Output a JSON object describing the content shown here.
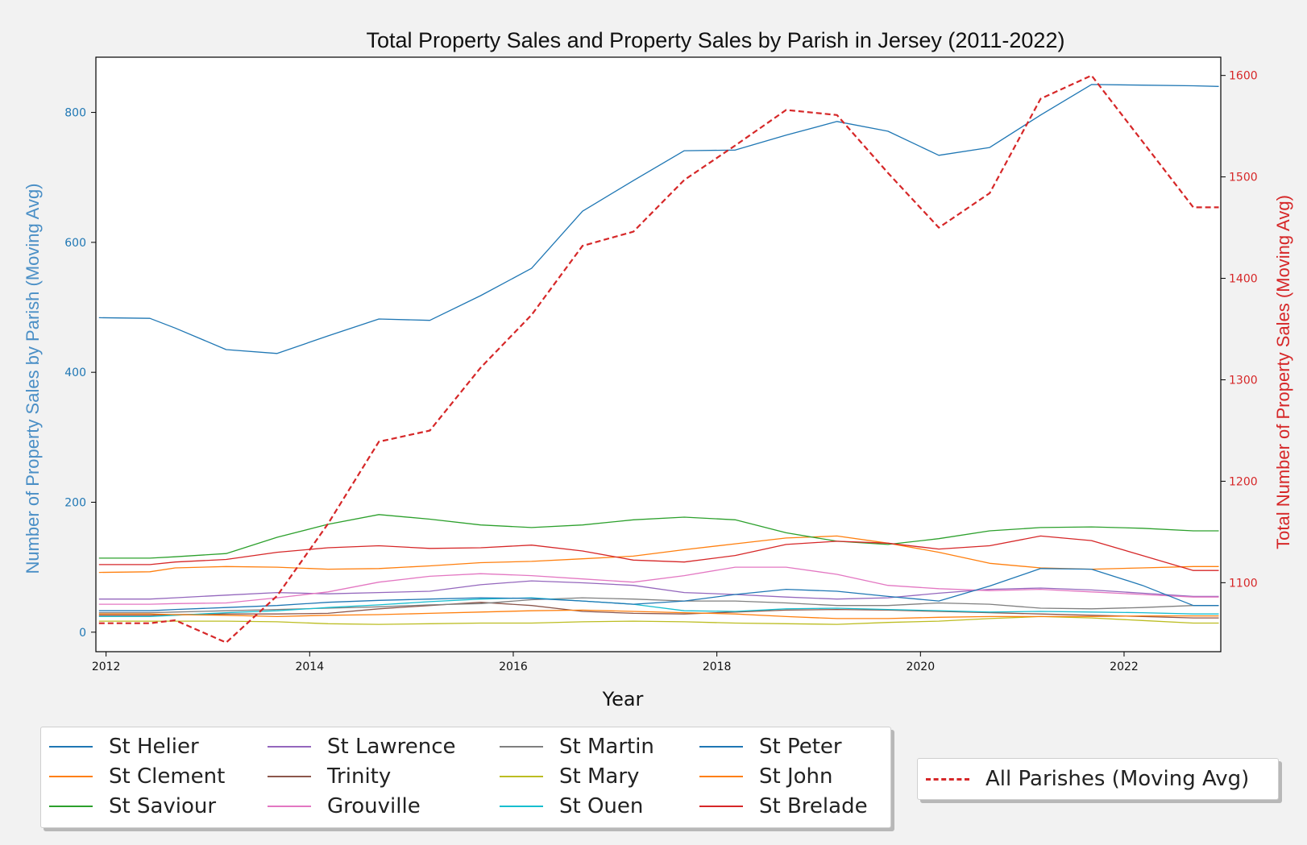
{
  "chart_data": {
    "type": "line",
    "title": "Total Property Sales and Property Sales by Parish in Jersey (2011-2022)",
    "xlabel": "Year",
    "ylabel_left": "Number of Property Sales by Parish (Moving Avg)",
    "ylabel_right": "Total Number of Property Sales (Moving Avg)",
    "xlim": [
      2011.9,
      2022.95
    ],
    "ylim_left": [
      -30,
      885
    ],
    "ylim_right": [
      1032,
      1618
    ],
    "x_ticks": [
      2012,
      2014,
      2016,
      2018,
      2020,
      2022
    ],
    "x_tick_labels": [
      "2012",
      "2014",
      "2016",
      "2018",
      "2020",
      "2022"
    ],
    "y_ticks_left": [
      0,
      200,
      400,
      600,
      800
    ],
    "y_tick_labels_left": [
      "0",
      "200",
      "400",
      "600",
      "800"
    ],
    "y_ticks_right": [
      1100,
      1200,
      1300,
      1400,
      1500,
      1600
    ],
    "y_tick_labels_right": [
      "1100",
      "1200",
      "1300",
      "1400",
      "1500",
      "1600"
    ],
    "grid": false,
    "left_axis_color": "#1f77b4",
    "right_axis_color": "#d62728",
    "x": [
      2011.93,
      2012.43,
      2012.68,
      2013.18,
      2013.68,
      2014.18,
      2014.68,
      2015.18,
      2015.68,
      2016.18,
      2016.68,
      2017.18,
      2017.68,
      2018.18,
      2018.68,
      2019.18,
      2019.68,
      2020.18,
      2020.68,
      2021.18,
      2021.68,
      2022.18,
      2022.68,
      2022.93
    ],
    "series": [
      {
        "name": "St Helier",
        "color": "#1f77b4",
        "axis": "left",
        "values": [
          484,
          483,
          468,
          435,
          429,
          456,
          482,
          480,
          518,
          560,
          648,
          695,
          741,
          742,
          765,
          786,
          771,
          734,
          746,
          796,
          843,
          842,
          841,
          840
        ]
      },
      {
        "name": "St Clement",
        "color": "#ff7f0e",
        "axis": "left",
        "values": [
          92,
          93,
          99,
          101,
          100,
          97,
          98,
          102,
          107,
          109,
          113,
          117,
          127,
          136,
          145,
          148,
          137,
          123,
          106,
          99,
          97,
          99,
          101,
          101
        ]
      },
      {
        "name": "St Saviour",
        "color": "#2ca02c",
        "axis": "left",
        "values": [
          114,
          114,
          116,
          121,
          146,
          166,
          181,
          174,
          165,
          161,
          165,
          173,
          177,
          173,
          153,
          140,
          135,
          144,
          156,
          161,
          162,
          160,
          156,
          156
        ]
      },
      {
        "name": "St Lawrence",
        "color": "#9467bd",
        "axis": "left",
        "values": [
          51,
          51,
          53,
          57,
          61,
          59,
          61,
          63,
          73,
          79,
          76,
          72,
          61,
          58,
          54,
          51,
          53,
          60,
          66,
          68,
          65,
          60,
          55,
          55
        ]
      },
      {
        "name": "Trinity",
        "color": "#8c564b",
        "axis": "left",
        "values": [
          26,
          26,
          27,
          28,
          28,
          29,
          36,
          41,
          46,
          41,
          32,
          29,
          28,
          31,
          34,
          35,
          34,
          32,
          30,
          28,
          26,
          24,
          22,
          22
        ]
      },
      {
        "name": "Grouville",
        "color": "#e377c2",
        "axis": "left",
        "values": [
          43,
          43,
          44,
          45,
          53,
          62,
          77,
          86,
          90,
          87,
          82,
          77,
          87,
          100,
          100,
          89,
          72,
          67,
          64,
          66,
          62,
          58,
          54,
          54
        ]
      },
      {
        "name": "St Martin",
        "color": "#7f7f7f",
        "axis": "left",
        "values": [
          30,
          30,
          31,
          33,
          35,
          37,
          39,
          42,
          44,
          50,
          53,
          51,
          48,
          48,
          45,
          41,
          41,
          45,
          43,
          37,
          36,
          38,
          41,
          41
        ]
      },
      {
        "name": "St Mary",
        "color": "#bcbd22",
        "axis": "left",
        "values": [
          17,
          17,
          17,
          17,
          16,
          13,
          12,
          13,
          14,
          14,
          16,
          17,
          16,
          14,
          13,
          12,
          15,
          17,
          21,
          24,
          22,
          18,
          14,
          14
        ]
      },
      {
        "name": "St Ouen",
        "color": "#17becf",
        "axis": "left",
        "values": [
          24,
          24,
          26,
          30,
          33,
          38,
          42,
          47,
          51,
          53,
          48,
          43,
          33,
          32,
          36,
          37,
          35,
          33,
          31,
          32,
          31,
          30,
          28,
          28
        ]
      },
      {
        "name": "St Peter",
        "color": "#1f77b4",
        "axis": "left",
        "values": [
          33,
          33,
          35,
          38,
          41,
          46,
          49,
          51,
          53,
          52,
          48,
          43,
          48,
          58,
          66,
          63,
          55,
          48,
          71,
          98,
          97,
          72,
          41,
          41
        ]
      },
      {
        "name": "St John",
        "color": "#ff7f0e",
        "axis": "left",
        "values": [
          28,
          28,
          27,
          26,
          24,
          26,
          27,
          29,
          31,
          33,
          34,
          32,
          30,
          28,
          24,
          21,
          21,
          23,
          24,
          24,
          24,
          25,
          25,
          25
        ]
      },
      {
        "name": "St Brelade",
        "color": "#d62728",
        "axis": "left",
        "values": [
          104,
          104,
          108,
          112,
          123,
          130,
          133,
          129,
          130,
          134,
          125,
          111,
          108,
          118,
          135,
          140,
          137,
          128,
          133,
          148,
          141,
          118,
          95,
          95
        ]
      }
    ],
    "total_series": {
      "name": "All Parishes (Moving Avg)",
      "color": "#d62728",
      "axis": "right",
      "style": "dashed",
      "values": [
        1060,
        1060,
        1063,
        1041,
        1087,
        1158,
        1239,
        1250,
        1312,
        1364,
        1432,
        1446,
        1497,
        1531,
        1566,
        1561,
        1504,
        1450,
        1484,
        1577,
        1600,
        1535,
        1470,
        1470
      ]
    },
    "legend_parish_placement": "bottom-left",
    "legend_total_placement": "bottom-right"
  }
}
